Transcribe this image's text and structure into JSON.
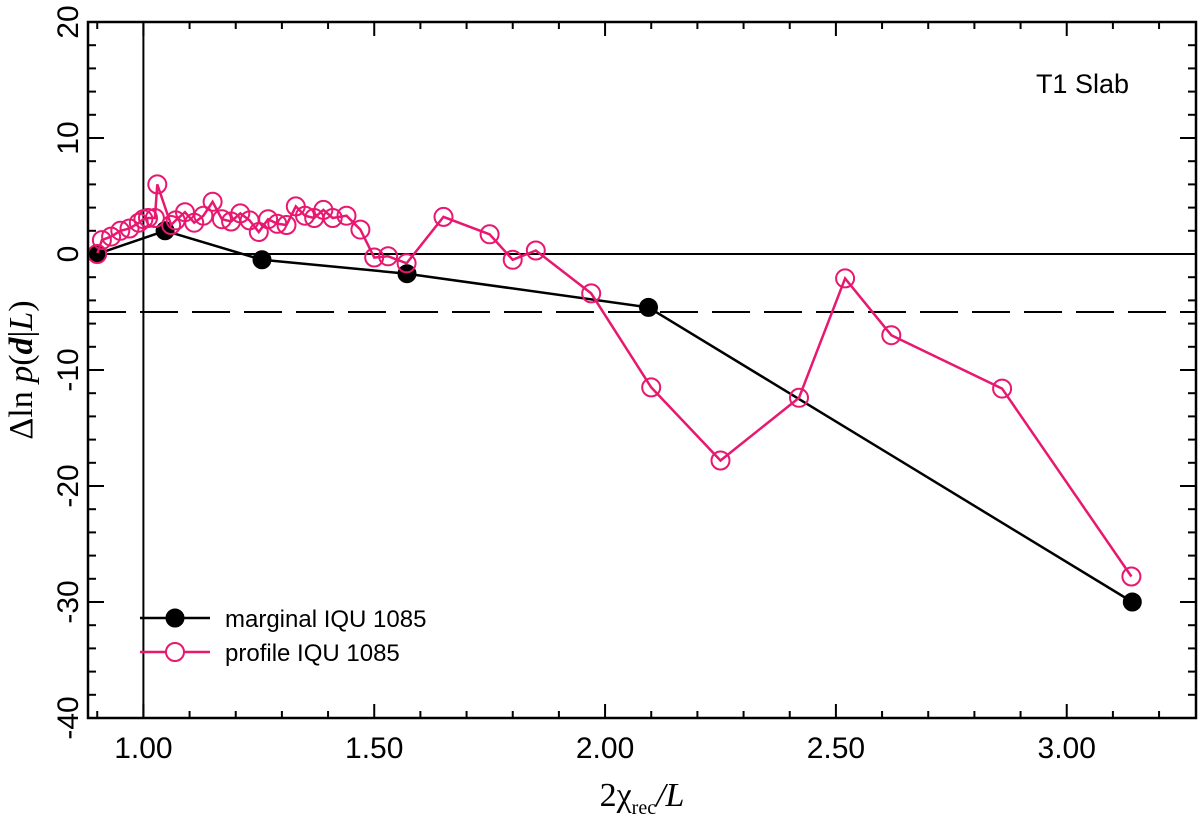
{
  "chart_data": {
    "type": "line",
    "annotation": "T1 Slab",
    "xlabel": {
      "prefix": "2",
      "chi": "χ",
      "sub": "rec",
      "suffix": "/L"
    },
    "ylabel": {
      "delta": "Δ",
      "ln": "ln ",
      "p": "p",
      "open": "(",
      "d": "d",
      "bar": "|",
      "L": "L",
      "close": ")"
    },
    "xlim": [
      0.88,
      3.28
    ],
    "ylim": [
      -40,
      20
    ],
    "xticks": [
      1.0,
      1.5,
      2.0,
      2.5,
      3.0
    ],
    "xtick_labels": [
      "1.00",
      "1.50",
      "2.00",
      "2.50",
      "3.00"
    ],
    "xminor_step": 0.1,
    "yticks": [
      -40,
      -30,
      -20,
      -10,
      0,
      10,
      20
    ],
    "ytick_labels": [
      "-40",
      "-30",
      "-20",
      "-10",
      "0",
      "10",
      "20"
    ],
    "yminor_step": 2,
    "hline_solid": 0,
    "hline_dashed": -5,
    "vline": 1.0,
    "series": [
      {
        "name": "marginal IQU 1085",
        "color": "#000000",
        "marker": "filled-circle",
        "x": [
          0.9,
          1.047,
          1.257,
          1.571,
          2.094,
          3.142
        ],
        "y": [
          0.0,
          2.0,
          -0.5,
          -1.7,
          -4.6,
          -30.0
        ]
      },
      {
        "name": "profile IQU 1085",
        "color": "#e8176f",
        "marker": "open-circle",
        "x": [
          0.9,
          0.91,
          0.93,
          0.95,
          0.97,
          0.99,
          1.0,
          1.01,
          1.025,
          1.03,
          1.06,
          1.07,
          1.09,
          1.11,
          1.13,
          1.15,
          1.17,
          1.19,
          1.21,
          1.23,
          1.25,
          1.27,
          1.29,
          1.31,
          1.33,
          1.35,
          1.37,
          1.39,
          1.41,
          1.44,
          1.47,
          1.5,
          1.53,
          1.57,
          1.65,
          1.75,
          1.8,
          1.85,
          1.97,
          2.1,
          2.25,
          2.42,
          2.52,
          2.62,
          2.86,
          3.14
        ],
        "y": [
          0.0,
          1.2,
          1.5,
          2.0,
          2.2,
          2.7,
          3.0,
          3.1,
          3.1,
          6.0,
          2.5,
          2.9,
          3.6,
          2.7,
          3.3,
          4.5,
          3.0,
          2.8,
          3.5,
          2.9,
          1.9,
          3.0,
          2.6,
          2.5,
          4.1,
          3.3,
          3.1,
          3.8,
          3.1,
          3.3,
          2.1,
          -0.3,
          -0.2,
          -0.8,
          3.2,
          1.7,
          -0.5,
          0.3,
          -3.4,
          -11.5,
          -17.8,
          -12.4,
          -2.1,
          -7.0,
          -11.6,
          -27.8
        ]
      }
    ]
  }
}
